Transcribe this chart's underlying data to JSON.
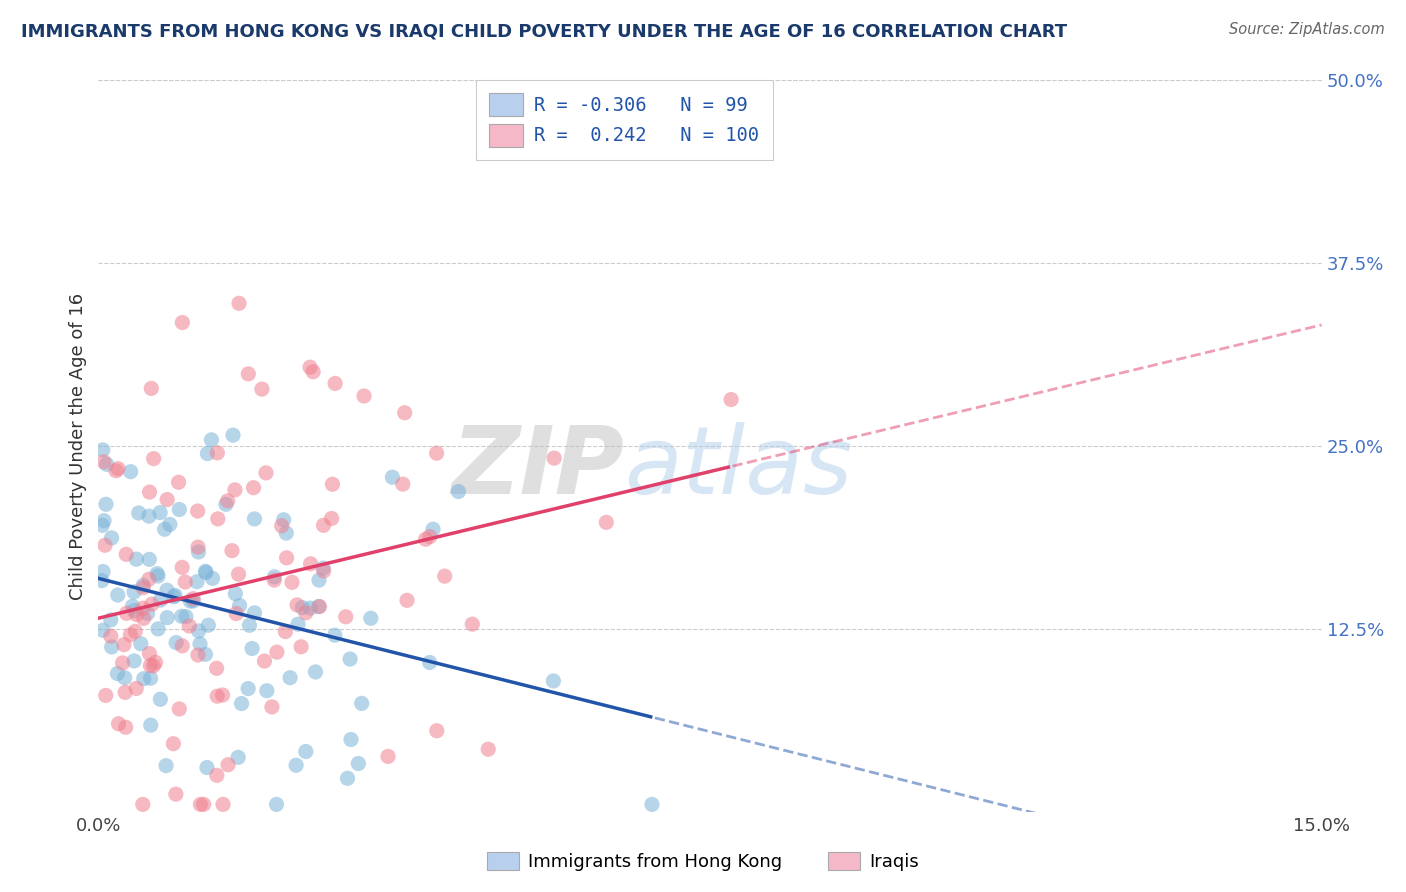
{
  "title": "IMMIGRANTS FROM HONG KONG VS IRAQI CHILD POVERTY UNDER THE AGE OF 16 CORRELATION CHART",
  "source": "Source: ZipAtlas.com",
  "ylabel": "Child Poverty Under the Age of 16",
  "x_min": 0.0,
  "x_max": 0.15,
  "y_min": 0.0,
  "y_max": 0.5,
  "x_tick_labels": [
    "0.0%",
    "15.0%"
  ],
  "x_tick_vals": [
    0.0,
    0.15
  ],
  "y_tick_labels_right": [
    "50.0%",
    "37.5%",
    "25.0%",
    "12.5%"
  ],
  "y_tick_vals_right": [
    0.5,
    0.375,
    0.25,
    0.125
  ],
  "legend_R1": "-0.306",
  "legend_N1": "99",
  "legend_R2": "0.242",
  "legend_N2": "100",
  "watermark_zip": "ZIP",
  "watermark_atlas": "atlas",
  "hk_R": -0.306,
  "hk_N": 99,
  "iraq_R": 0.242,
  "iraq_N": 100,
  "background_color": "#ffffff",
  "grid_color": "#cccccc",
  "title_color": "#1a3a6b",
  "scatter_hk_color": "#7ab3d8",
  "scatter_iraq_color": "#f08090",
  "trend_hk_color": "#2255aa",
  "trend_iraq_color": "#e0406a",
  "legend_hk_fill": "#b8d0ed",
  "legend_iraq_fill": "#f4b8c8",
  "legend_text_color": "#2255aa",
  "seed": 7
}
